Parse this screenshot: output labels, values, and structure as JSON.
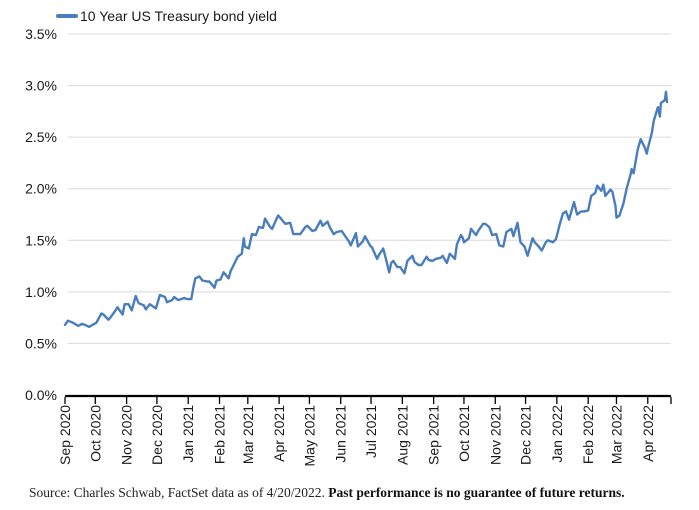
{
  "legend": {
    "label": "10 Year US Treasury bond yield"
  },
  "source": {
    "prefix": "Source: Charles Schwab, FactSet data as of 4/20/2022. ",
    "bold": "Past performance is no guarantee of future returns."
  },
  "colors": {
    "line": "#4a7dbb",
    "grid": "#d9d9d9",
    "axis": "#000000",
    "label": "#1a1a1a"
  },
  "chart_data": {
    "type": "line",
    "title": "",
    "legend_position": "top-left",
    "grid": "horizontal",
    "ylabel": "",
    "xlabel": "",
    "ylim": [
      0,
      3.5
    ],
    "x_domain": [
      "2020-09-01",
      "2022-04-24"
    ],
    "y_ticks": [
      {
        "value": 0.0,
        "label": "0.0%"
      },
      {
        "value": 0.5,
        "label": "0.5%"
      },
      {
        "value": 1.0,
        "label": "1.0%"
      },
      {
        "value": 1.5,
        "label": "1.5%"
      },
      {
        "value": 2.0,
        "label": "2.0%"
      },
      {
        "value": 2.5,
        "label": "2.5%"
      },
      {
        "value": 3.0,
        "label": "3.0%"
      },
      {
        "value": 3.5,
        "label": "3.5%"
      }
    ],
    "x_ticks": [
      {
        "date": "2020-09-01",
        "label": "Sep 2020"
      },
      {
        "date": "2020-10-01",
        "label": "Oct 2020"
      },
      {
        "date": "2020-11-01",
        "label": "Nov 2020"
      },
      {
        "date": "2020-12-01",
        "label": "Dec 2020"
      },
      {
        "date": "2021-01-01",
        "label": "Jan 2021"
      },
      {
        "date": "2021-02-01",
        "label": "Feb 2021"
      },
      {
        "date": "2021-03-01",
        "label": "Mar 2021"
      },
      {
        "date": "2021-04-01",
        "label": "Apr 2021"
      },
      {
        "date": "2021-05-01",
        "label": "May 2021"
      },
      {
        "date": "2021-06-01",
        "label": "Jun 2021"
      },
      {
        "date": "2021-07-01",
        "label": "Jul 2021"
      },
      {
        "date": "2021-08-01",
        "label": "Aug 2021"
      },
      {
        "date": "2021-09-01",
        "label": "Sep 2021"
      },
      {
        "date": "2021-10-01",
        "label": "Oct 2021"
      },
      {
        "date": "2021-11-01",
        "label": "Nov 2021"
      },
      {
        "date": "2021-12-01",
        "label": "Dec 2021"
      },
      {
        "date": "2022-01-01",
        "label": "Jan 2022"
      },
      {
        "date": "2022-02-01",
        "label": "Feb 2022"
      },
      {
        "date": "2022-03-01",
        "label": "Mar 2022"
      },
      {
        "date": "2022-04-01",
        "label": "Apr 2022"
      }
    ],
    "series": [
      {
        "name": "10 Year US Treasury bond yield",
        "color": "#4a7dbb",
        "points": [
          [
            "2020-09-01",
            0.68
          ],
          [
            "2020-09-04",
            0.72
          ],
          [
            "2020-09-09",
            0.7
          ],
          [
            "2020-09-14",
            0.67
          ],
          [
            "2020-09-18",
            0.69
          ],
          [
            "2020-09-23",
            0.67
          ],
          [
            "2020-09-25",
            0.66
          ],
          [
            "2020-09-30",
            0.69
          ],
          [
            "2020-10-02",
            0.7
          ],
          [
            "2020-10-07",
            0.79
          ],
          [
            "2020-10-09",
            0.78
          ],
          [
            "2020-10-14",
            0.73
          ],
          [
            "2020-10-16",
            0.75
          ],
          [
            "2020-10-21",
            0.82
          ],
          [
            "2020-10-23",
            0.85
          ],
          [
            "2020-10-28",
            0.78
          ],
          [
            "2020-10-30",
            0.88
          ],
          [
            "2020-11-03",
            0.88
          ],
          [
            "2020-11-06",
            0.82
          ],
          [
            "2020-11-10",
            0.96
          ],
          [
            "2020-11-13",
            0.89
          ],
          [
            "2020-11-18",
            0.87
          ],
          [
            "2020-11-20",
            0.83
          ],
          [
            "2020-11-24",
            0.88
          ],
          [
            "2020-11-30",
            0.84
          ],
          [
            "2020-12-04",
            0.97
          ],
          [
            "2020-12-09",
            0.95
          ],
          [
            "2020-12-11",
            0.9
          ],
          [
            "2020-12-16",
            0.92
          ],
          [
            "2020-12-18",
            0.95
          ],
          [
            "2020-12-22",
            0.92
          ],
          [
            "2020-12-28",
            0.94
          ],
          [
            "2020-12-31",
            0.93
          ],
          [
            "2021-01-04",
            0.93
          ],
          [
            "2021-01-06",
            1.04
          ],
          [
            "2021-01-08",
            1.13
          ],
          [
            "2021-01-12",
            1.15
          ],
          [
            "2021-01-15",
            1.11
          ],
          [
            "2021-01-20",
            1.1
          ],
          [
            "2021-01-22",
            1.1
          ],
          [
            "2021-01-27",
            1.04
          ],
          [
            "2021-01-29",
            1.11
          ],
          [
            "2021-02-02",
            1.12
          ],
          [
            "2021-02-05",
            1.19
          ],
          [
            "2021-02-10",
            1.13
          ],
          [
            "2021-02-12",
            1.2
          ],
          [
            "2021-02-17",
            1.3
          ],
          [
            "2021-02-19",
            1.34
          ],
          [
            "2021-02-23",
            1.37
          ],
          [
            "2021-02-25",
            1.52
          ],
          [
            "2021-02-26",
            1.44
          ],
          [
            "2021-03-02",
            1.42
          ],
          [
            "2021-03-05",
            1.56
          ],
          [
            "2021-03-09",
            1.55
          ],
          [
            "2021-03-12",
            1.63
          ],
          [
            "2021-03-16",
            1.62
          ],
          [
            "2021-03-18",
            1.71
          ],
          [
            "2021-03-23",
            1.63
          ],
          [
            "2021-03-25",
            1.61
          ],
          [
            "2021-03-30",
            1.72
          ],
          [
            "2021-03-31",
            1.74
          ],
          [
            "2021-04-02",
            1.72
          ],
          [
            "2021-04-07",
            1.66
          ],
          [
            "2021-04-12",
            1.67
          ],
          [
            "2021-04-15",
            1.56
          ],
          [
            "2021-04-20",
            1.56
          ],
          [
            "2021-04-22",
            1.56
          ],
          [
            "2021-04-27",
            1.63
          ],
          [
            "2021-04-29",
            1.64
          ],
          [
            "2021-05-04",
            1.59
          ],
          [
            "2021-05-07",
            1.6
          ],
          [
            "2021-05-12",
            1.69
          ],
          [
            "2021-05-14",
            1.64
          ],
          [
            "2021-05-19",
            1.68
          ],
          [
            "2021-05-21",
            1.63
          ],
          [
            "2021-05-25",
            1.56
          ],
          [
            "2021-05-28",
            1.58
          ],
          [
            "2021-06-02",
            1.59
          ],
          [
            "2021-06-04",
            1.56
          ],
          [
            "2021-06-09",
            1.49
          ],
          [
            "2021-06-11",
            1.45
          ],
          [
            "2021-06-16",
            1.57
          ],
          [
            "2021-06-18",
            1.44
          ],
          [
            "2021-06-23",
            1.49
          ],
          [
            "2021-06-25",
            1.54
          ],
          [
            "2021-06-30",
            1.45
          ],
          [
            "2021-07-02",
            1.43
          ],
          [
            "2021-07-07",
            1.32
          ],
          [
            "2021-07-09",
            1.36
          ],
          [
            "2021-07-13",
            1.42
          ],
          [
            "2021-07-16",
            1.31
          ],
          [
            "2021-07-19",
            1.19
          ],
          [
            "2021-07-21",
            1.28
          ],
          [
            "2021-07-23",
            1.3
          ],
          [
            "2021-07-27",
            1.24
          ],
          [
            "2021-07-30",
            1.24
          ],
          [
            "2021-08-03",
            1.18
          ],
          [
            "2021-08-06",
            1.3
          ],
          [
            "2021-08-11",
            1.35
          ],
          [
            "2021-08-13",
            1.29
          ],
          [
            "2021-08-17",
            1.26
          ],
          [
            "2021-08-20",
            1.26
          ],
          [
            "2021-08-25",
            1.34
          ],
          [
            "2021-08-27",
            1.31
          ],
          [
            "2021-08-31",
            1.3
          ],
          [
            "2021-09-03",
            1.32
          ],
          [
            "2021-09-08",
            1.33
          ],
          [
            "2021-09-10",
            1.35
          ],
          [
            "2021-09-14",
            1.28
          ],
          [
            "2021-09-17",
            1.37
          ],
          [
            "2021-09-22",
            1.32
          ],
          [
            "2021-09-24",
            1.46
          ],
          [
            "2021-09-28",
            1.55
          ],
          [
            "2021-09-30",
            1.52
          ],
          [
            "2021-10-01",
            1.48
          ],
          [
            "2021-10-06",
            1.52
          ],
          [
            "2021-10-08",
            1.61
          ],
          [
            "2021-10-13",
            1.55
          ],
          [
            "2021-10-15",
            1.59
          ],
          [
            "2021-10-20",
            1.66
          ],
          [
            "2021-10-22",
            1.66
          ],
          [
            "2021-10-26",
            1.63
          ],
          [
            "2021-10-29",
            1.55
          ],
          [
            "2021-11-02",
            1.56
          ],
          [
            "2021-11-05",
            1.45
          ],
          [
            "2021-11-09",
            1.44
          ],
          [
            "2021-11-12",
            1.58
          ],
          [
            "2021-11-17",
            1.61
          ],
          [
            "2021-11-19",
            1.54
          ],
          [
            "2021-11-23",
            1.67
          ],
          [
            "2021-11-26",
            1.48
          ],
          [
            "2021-11-30",
            1.44
          ],
          [
            "2021-12-03",
            1.35
          ],
          [
            "2021-12-08",
            1.52
          ],
          [
            "2021-12-10",
            1.48
          ],
          [
            "2021-12-14",
            1.44
          ],
          [
            "2021-12-17",
            1.4
          ],
          [
            "2021-12-21",
            1.48
          ],
          [
            "2021-12-23",
            1.5
          ],
          [
            "2021-12-28",
            1.48
          ],
          [
            "2021-12-31",
            1.51
          ],
          [
            "2022-01-04",
            1.66
          ],
          [
            "2022-01-07",
            1.76
          ],
          [
            "2022-01-10",
            1.78
          ],
          [
            "2022-01-13",
            1.7
          ],
          [
            "2022-01-18",
            1.87
          ],
          [
            "2022-01-21",
            1.75
          ],
          [
            "2022-01-25",
            1.78
          ],
          [
            "2022-01-28",
            1.78
          ],
          [
            "2022-02-01",
            1.79
          ],
          [
            "2022-02-04",
            1.93
          ],
          [
            "2022-02-08",
            1.96
          ],
          [
            "2022-02-10",
            2.03
          ],
          [
            "2022-02-14",
            1.98
          ],
          [
            "2022-02-16",
            2.04
          ],
          [
            "2022-02-18",
            1.93
          ],
          [
            "2022-02-23",
            1.99
          ],
          [
            "2022-02-25",
            1.97
          ],
          [
            "2022-02-28",
            1.83
          ],
          [
            "2022-03-01",
            1.72
          ],
          [
            "2022-03-04",
            1.74
          ],
          [
            "2022-03-08",
            1.86
          ],
          [
            "2022-03-11",
            2.0
          ],
          [
            "2022-03-15",
            2.14
          ],
          [
            "2022-03-16",
            2.19
          ],
          [
            "2022-03-18",
            2.15
          ],
          [
            "2022-03-22",
            2.38
          ],
          [
            "2022-03-25",
            2.48
          ],
          [
            "2022-03-29",
            2.4
          ],
          [
            "2022-03-31",
            2.34
          ],
          [
            "2022-04-01",
            2.39
          ],
          [
            "2022-04-05",
            2.54
          ],
          [
            "2022-04-07",
            2.66
          ],
          [
            "2022-04-11",
            2.79
          ],
          [
            "2022-04-13",
            2.7
          ],
          [
            "2022-04-14",
            2.83
          ],
          [
            "2022-04-18",
            2.86
          ],
          [
            "2022-04-19",
            2.94
          ],
          [
            "2022-04-20",
            2.84
          ]
        ]
      }
    ]
  }
}
